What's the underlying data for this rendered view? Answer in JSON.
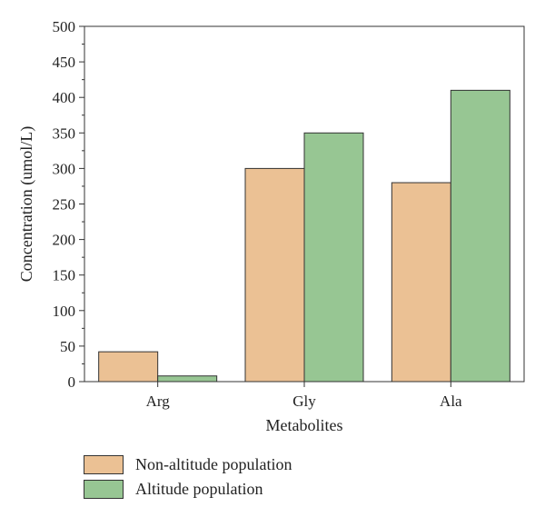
{
  "chart_data": {
    "type": "bar",
    "title": "",
    "xlabel": "Metabolites",
    "ylabel": "Concentration (umol/L)",
    "categories": [
      "Arg",
      "Gly",
      "Ala"
    ],
    "series": [
      {
        "name": "Non-altitude population",
        "values": [
          42,
          300,
          280
        ],
        "color": "#ebc194"
      },
      {
        "name": "Altitude population",
        "values": [
          8,
          350,
          410
        ],
        "color": "#97c693"
      }
    ],
    "ylim": [
      0,
      500
    ],
    "yticks": [
      0,
      50,
      100,
      150,
      200,
      250,
      300,
      350,
      400,
      450,
      500
    ],
    "grid": false,
    "legend": "bottom-left"
  }
}
